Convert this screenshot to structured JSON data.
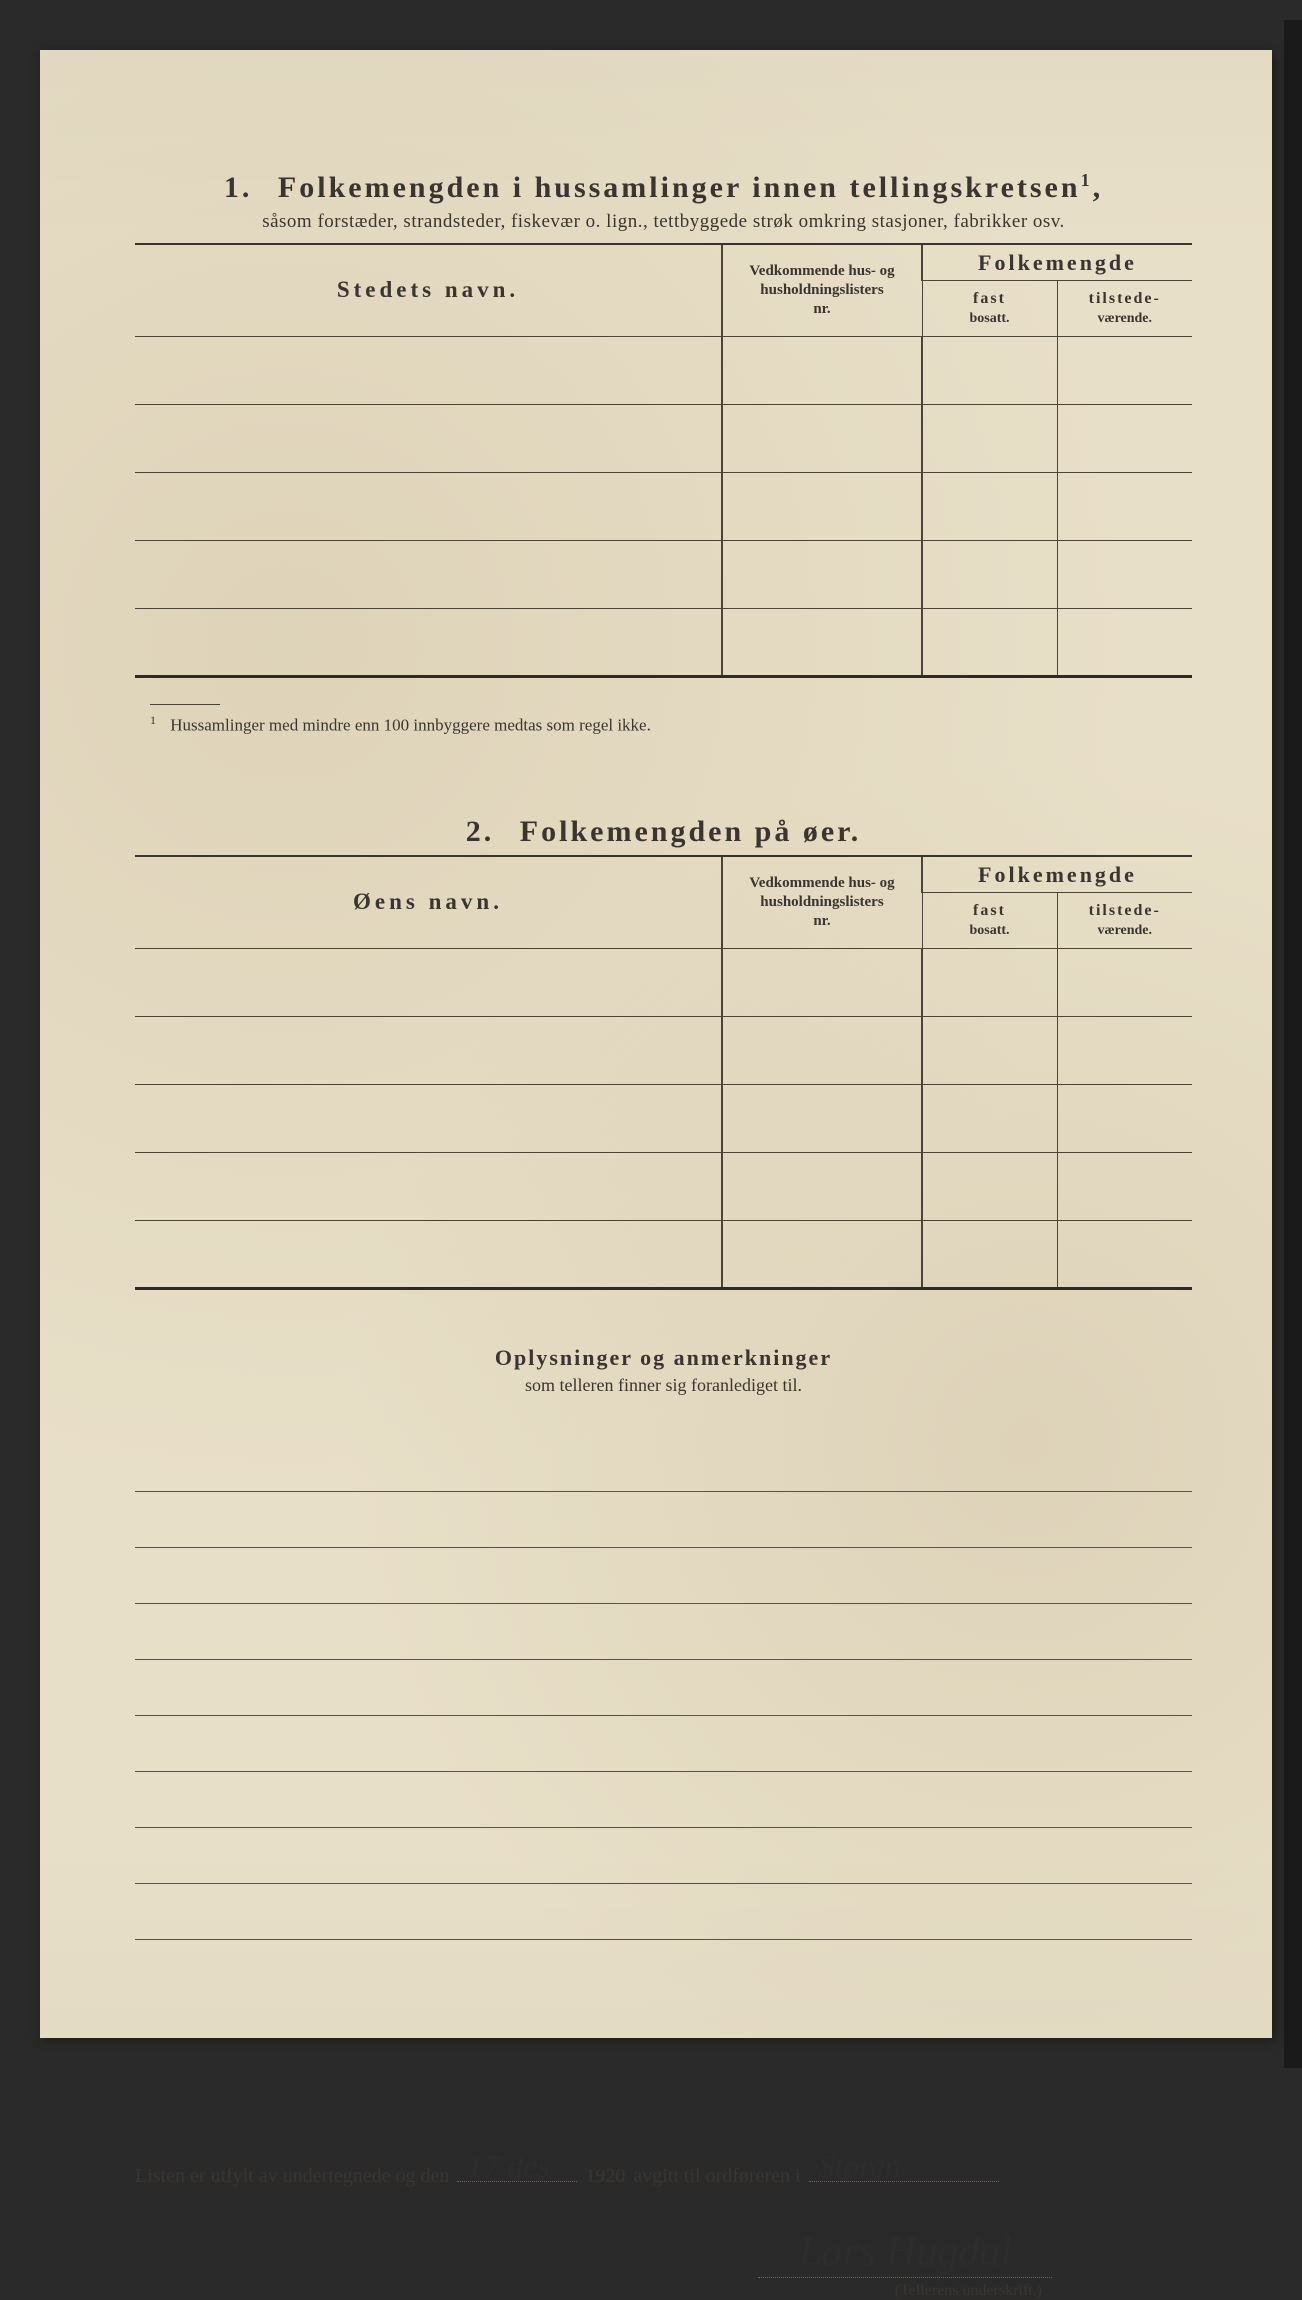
{
  "colors": {
    "paper": "#e8dfc8",
    "ink": "#3a3530",
    "rule": "#4a443a",
    "heavy_rule": "#2f2b23",
    "page_bg": "#2a2a2a",
    "handwriting": "#2d2d2d"
  },
  "section1": {
    "number": "1.",
    "title": "Folkemengden i hussamlinger innen tellingskretsen",
    "title_sup": "1",
    "subtitle": "såsom forstæder, strandsteder, fiskevær o. lign., tettbyggede strøk omkring stasjoner, fabrikker osv.",
    "col_name": "Stedets navn.",
    "col_vedk_l1": "Vedkommende hus- og",
    "col_vedk_l2": "husholdningslisters",
    "col_vedk_l3": "nr.",
    "col_folke": "Folkemengde",
    "col_fast_l1": "fast",
    "col_fast_l2": "bosatt.",
    "col_til_l1": "tilstede-",
    "col_til_l2": "værende.",
    "row_count": 5,
    "footnote_mark": "1",
    "footnote": "Hussamlinger med mindre enn 100 innbyggere medtas som regel ikke."
  },
  "section2": {
    "number": "2.",
    "title": "Folkemengden på øer.",
    "col_name": "Øens navn.",
    "col_vedk_l1": "Vedkommende hus- og",
    "col_vedk_l2": "husholdningslisters",
    "col_vedk_l3": "nr.",
    "col_folke": "Folkemengde",
    "col_fast_l1": "fast",
    "col_fast_l2": "bosatt.",
    "col_til_l1": "tilstede-",
    "col_til_l2": "værende.",
    "row_count": 5
  },
  "remarks": {
    "title": "Oplysninger og anmerkninger",
    "subtitle": "som telleren finner sig foranlediget til.",
    "line_count": 9
  },
  "signature": {
    "pre": "Listen er utfylt av undertegnede og den",
    "date_hand": "17 des",
    "year": "1920",
    "mid": "avgitt til ordføreren i",
    "place_hand": "Støren",
    "name_hand": "Lars Hugdal",
    "caption": "(Tellerens underskrift.)"
  }
}
